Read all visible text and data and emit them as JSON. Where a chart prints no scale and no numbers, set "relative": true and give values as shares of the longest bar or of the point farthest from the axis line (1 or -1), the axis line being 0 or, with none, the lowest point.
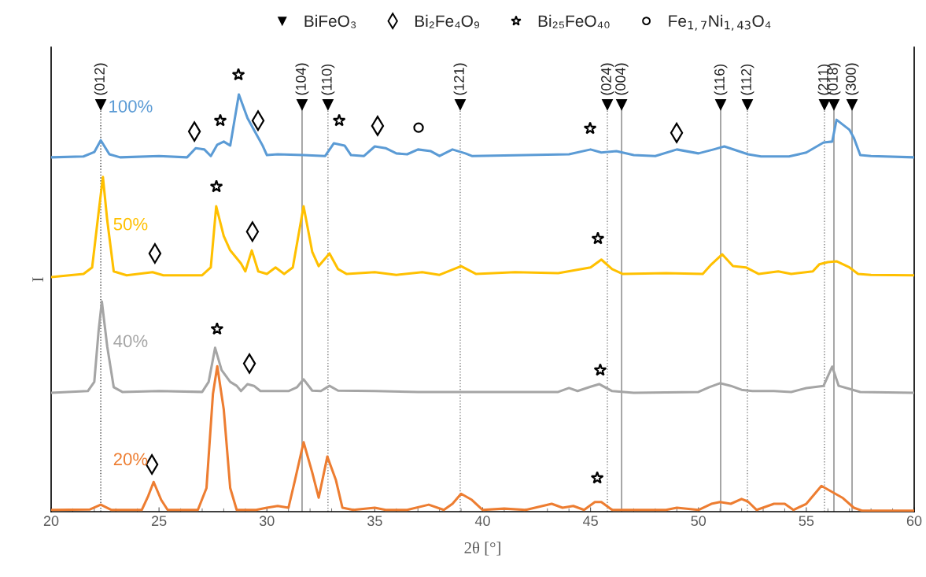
{
  "chart_data": {
    "type": "line",
    "relative": true,
    "xlabel": "2θ [°]",
    "ylabel": "I",
    "xlim": [
      20,
      60
    ],
    "xticks": [
      20,
      25,
      30,
      35,
      40,
      45,
      50,
      55,
      60
    ],
    "tick_labels": "x",
    "grid": false,
    "legend": "top",
    "series": [
      {
        "name": "100%",
        "color": "#5b9bd5",
        "x": [
          20,
          21.5,
          22.0,
          22.3,
          22.7,
          23.2,
          25,
          26.3,
          26.7,
          27.1,
          27.4,
          27.7,
          28.0,
          28.3,
          28.7,
          29.1,
          29.5,
          29.8,
          30.0,
          30.5,
          31.7,
          32.7,
          33.1,
          33.6,
          33.9,
          34.5,
          35.0,
          35.5,
          36.0,
          36.5,
          37.0,
          37.6,
          38.0,
          38.6,
          39.2,
          39.5,
          44.0,
          45.0,
          45.5,
          46.2,
          47.0,
          48.0,
          49.0,
          50.0,
          50.7,
          51.2,
          52.3,
          52.9,
          54.2,
          55.0,
          55.8,
          56.2,
          56.4,
          57.0,
          57.2,
          57.5,
          58,
          60
        ],
        "values": [
          0.811,
          0.813,
          0.823,
          0.85,
          0.818,
          0.811,
          0.814,
          0.811,
          0.832,
          0.829,
          0.814,
          0.84,
          0.847,
          0.838,
          0.955,
          0.901,
          0.865,
          0.838,
          0.816,
          0.818,
          0.816,
          0.814,
          0.843,
          0.838,
          0.816,
          0.814,
          0.836,
          0.832,
          0.82,
          0.818,
          0.829,
          0.825,
          0.814,
          0.829,
          0.82,
          0.814,
          0.818,
          0.829,
          0.822,
          0.825,
          0.816,
          0.814,
          0.829,
          0.82,
          0.829,
          0.836,
          0.818,
          0.813,
          0.813,
          0.822,
          0.845,
          0.847,
          0.897,
          0.874,
          0.856,
          0.816,
          0.814,
          0.811
        ]
      },
      {
        "name": "50%",
        "color": "#ffc000",
        "x": [
          20,
          21.5,
          21.9,
          22.2,
          22.4,
          22.6,
          22.9,
          23.5,
          24.7,
          25.2,
          27.0,
          27.4,
          27.65,
          28.0,
          28.3,
          28.8,
          29.0,
          29.3,
          29.6,
          30.0,
          30.4,
          30.8,
          31.2,
          31.7,
          32.1,
          32.4,
          32.9,
          33.3,
          33.7,
          35,
          36,
          37.2,
          38,
          39.0,
          39.7,
          41.5,
          43.5,
          45.0,
          45.5,
          46.0,
          46.5,
          48.5,
          50.2,
          50.6,
          51.1,
          51.6,
          52.2,
          52.8,
          53.7,
          54.3,
          55.3,
          55.6,
          56.0,
          56.4,
          57.0,
          57.4,
          58,
          60
        ],
        "values": [
          0.537,
          0.544,
          0.559,
          0.685,
          0.766,
          0.667,
          0.55,
          0.541,
          0.548,
          0.541,
          0.541,
          0.559,
          0.699,
          0.631,
          0.598,
          0.568,
          0.55,
          0.598,
          0.55,
          0.544,
          0.559,
          0.544,
          0.559,
          0.699,
          0.595,
          0.562,
          0.591,
          0.555,
          0.544,
          0.548,
          0.542,
          0.548,
          0.542,
          0.562,
          0.544,
          0.548,
          0.546,
          0.559,
          0.577,
          0.555,
          0.544,
          0.546,
          0.544,
          0.566,
          0.589,
          0.562,
          0.559,
          0.544,
          0.55,
          0.544,
          0.55,
          0.566,
          0.571,
          0.573,
          0.559,
          0.544,
          0.542,
          0.541
        ]
      },
      {
        "name": "40%",
        "color": "#a5a5a5",
        "x": [
          20,
          21.7,
          22.0,
          22.2,
          22.35,
          22.6,
          22.9,
          23.3,
          25,
          27.0,
          27.3,
          27.6,
          27.9,
          28.3,
          28.6,
          28.8,
          29.1,
          29.4,
          29.7,
          30.5,
          31.0,
          31.4,
          31.7,
          32.1,
          32.5,
          32.9,
          33.3,
          35,
          37,
          40,
          43.5,
          44.0,
          44.4,
          45.0,
          45.4,
          46.0,
          47,
          50,
          50.5,
          51.0,
          51.5,
          52.0,
          52.5,
          53.5,
          54.3,
          55.0,
          55.8,
          56.2,
          56.5,
          57.0,
          57.5,
          60
        ],
        "values": [
          0.272,
          0.276,
          0.297,
          0.414,
          0.481,
          0.378,
          0.285,
          0.274,
          0.276,
          0.274,
          0.297,
          0.375,
          0.324,
          0.297,
          0.288,
          0.276,
          0.292,
          0.288,
          0.276,
          0.276,
          0.276,
          0.285,
          0.303,
          0.277,
          0.276,
          0.288,
          0.277,
          0.276,
          0.274,
          0.274,
          0.274,
          0.283,
          0.276,
          0.286,
          0.292,
          0.276,
          0.272,
          0.274,
          0.285,
          0.294,
          0.288,
          0.279,
          0.276,
          0.276,
          0.274,
          0.283,
          0.288,
          0.332,
          0.288,
          0.281,
          0.274,
          0.272
        ]
      },
      {
        "name": "20%",
        "color": "#ed7d31",
        "x": [
          20,
          21.8,
          22.3,
          22.8,
          24.2,
          24.5,
          24.75,
          25.1,
          25.4,
          26.8,
          27.2,
          27.5,
          27.7,
          28.0,
          28.3,
          28.6,
          29.5,
          30.0,
          30.5,
          31.0,
          31.3,
          31.7,
          32.1,
          32.4,
          32.8,
          33.2,
          33.5,
          34,
          35.0,
          35.5,
          36.5,
          37.5,
          38.2,
          38.6,
          39.0,
          39.5,
          40.0,
          41,
          42,
          43.2,
          43.7,
          44.2,
          44.7,
          45.2,
          45.5,
          46.0,
          48.5,
          49.0,
          50.0,
          50.6,
          51.0,
          51.5,
          52.0,
          52.3,
          52.7,
          53.5,
          54.0,
          54.4,
          55.0,
          55.7,
          56.2,
          56.7,
          57.2,
          57.6,
          60
        ],
        "values": [
          0.004,
          0.005,
          0.016,
          0.004,
          0.004,
          0.036,
          0.068,
          0.027,
          0.004,
          0.004,
          0.054,
          0.27,
          0.333,
          0.234,
          0.054,
          0.004,
          0.004,
          0.009,
          0.013,
          0.009,
          0.072,
          0.159,
          0.09,
          0.032,
          0.126,
          0.072,
          0.009,
          0.004,
          0.009,
          0.004,
          0.004,
          0.016,
          0.004,
          0.018,
          0.041,
          0.027,
          0.004,
          0.007,
          0.004,
          0.018,
          0.009,
          0.013,
          0.004,
          0.022,
          0.022,
          0.004,
          0.004,
          0.009,
          0.004,
          0.018,
          0.022,
          0.018,
          0.029,
          0.023,
          0.004,
          0.018,
          0.018,
          0.004,
          0.018,
          0.059,
          0.045,
          0.031,
          0.009,
          0.002,
          0.002
        ]
      },
      {
        "type": "scatter",
        "name": "BiFeO₃",
        "color": "#000000",
        "marker": "triangle",
        "x": [
          22.3,
          31.63,
          32.83,
          38.96,
          45.78,
          46.44,
          51.03,
          52.27,
          55.84,
          56.28,
          57.12
        ],
        "values": [
          0.932,
          0.932,
          0.932,
          0.932,
          0.932,
          0.932,
          0.932,
          0.932,
          0.932,
          0.932,
          0.932
        ]
      },
      {
        "type": "scatter",
        "name": "Bi₂Fe₄O₉",
        "color": "#000000",
        "marker": "diamond",
        "x": [
          26.64,
          29.59,
          35.13,
          48.99,
          24.81,
          29.33,
          29.19,
          24.67
        ],
        "values": [
          0.87,
          0.895,
          0.883,
          0.867,
          0.591,
          0.641,
          0.339,
          0.108
        ]
      },
      {
        "type": "scatter",
        "name": "Bi₂₅FeO₄₀",
        "color": "#000000",
        "marker": "star",
        "x": [
          28.68,
          27.84,
          33.35,
          44.98,
          27.66,
          45.34,
          27.69,
          45.45,
          45.31
        ],
        "values": [
          1.0,
          0.895,
          0.895,
          0.877,
          0.744,
          0.625,
          0.418,
          0.324,
          0.077
        ]
      },
      {
        "type": "scatter",
        "name": "Fe$_{1,7}$Ni$_{1,43}$O₄",
        "color": "#000000",
        "marker": "circle",
        "x": [
          37.03
        ],
        "values": [
          0.879
        ]
      }
    ],
    "ref_lines": [
      {
        "axis": "x",
        "value": 22.3,
        "color": "#404040",
        "line_style": "dotted"
      },
      {
        "axis": "x",
        "value": 31.63,
        "color": "#808080",
        "line_style": "solid"
      },
      {
        "axis": "x",
        "value": 32.83,
        "color": "#808080",
        "line_style": "dotted"
      },
      {
        "axis": "x",
        "value": 38.96,
        "color": "#808080",
        "line_style": "dotted"
      },
      {
        "axis": "x",
        "value": 45.78,
        "color": "#808080",
        "line_style": "dotted"
      },
      {
        "axis": "x",
        "value": 46.44,
        "color": "#808080",
        "line_style": "solid"
      },
      {
        "axis": "x",
        "value": 51.03,
        "color": "#808080",
        "line_style": "solid"
      },
      {
        "axis": "x",
        "value": 52.27,
        "color": "#808080",
        "line_style": "dotted"
      },
      {
        "axis": "x",
        "value": 55.84,
        "color": "#808080",
        "line_style": "dotted"
      },
      {
        "axis": "x",
        "value": 56.28,
        "color": "#808080",
        "line_style": "solid"
      },
      {
        "axis": "x",
        "value": 57.12,
        "color": "#808080",
        "line_style": "solid"
      }
    ],
    "annotations": [
      {
        "text": "(012)",
        "x": 22.3,
        "y": 0.932
      },
      {
        "text": "(104)",
        "x": 31.63,
        "y": 0.932
      },
      {
        "text": "(110)",
        "x": 32.83,
        "y": 0.932
      },
      {
        "text": "(121)",
        "x": 38.96,
        "y": 0.932
      },
      {
        "text": "(024)",
        "x": 45.78,
        "y": 0.932
      },
      {
        "text": "(004)",
        "x": 46.44,
        "y": 0.932
      },
      {
        "text": "(116)",
        "x": 51.03,
        "y": 0.932
      },
      {
        "text": "(112)",
        "x": 52.27,
        "y": 0.932
      },
      {
        "text": "(211)",
        "x": 55.84,
        "y": 0.932
      },
      {
        "text": "(018)",
        "x": 56.28,
        "y": 0.932
      },
      {
        "text": "(300)",
        "x": 57.12,
        "y": 0.932
      }
    ]
  }
}
